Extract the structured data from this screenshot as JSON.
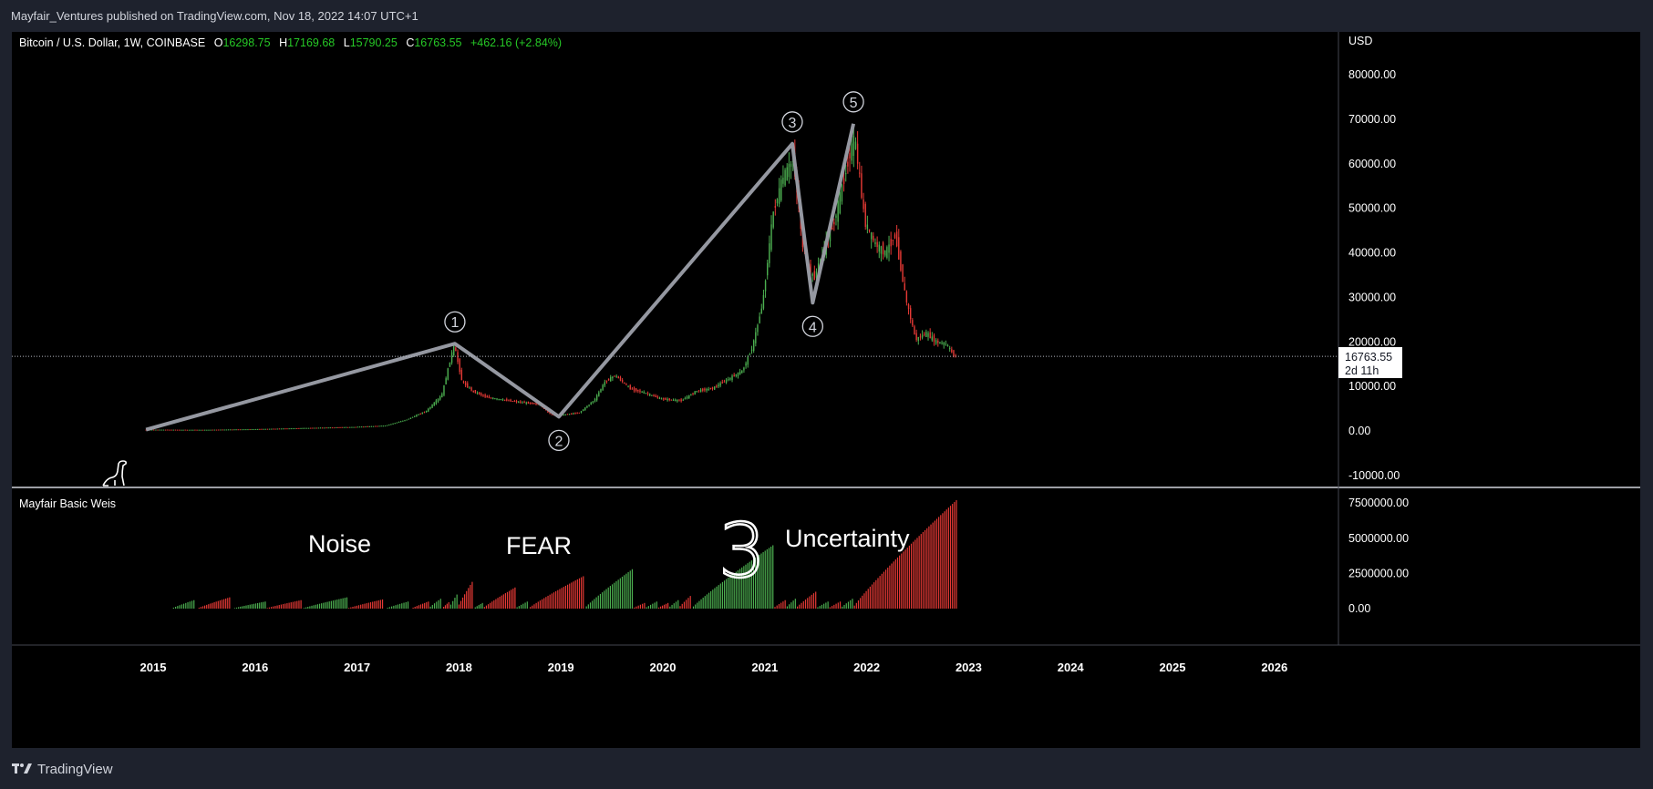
{
  "publish_line": "Mayfair_Ventures published on TradingView.com, Nov 18, 2022 14:07 UTC+1",
  "footer": {
    "brand": "TradingView",
    "logo_icon": "tradingview-logo-icon"
  },
  "symbol": {
    "name": "Bitcoin / U.S. Dollar, 1W, COINBASE",
    "o_label": "O",
    "o": "16298.75",
    "h_label": "H",
    "h": "17169.68",
    "l_label": "L",
    "l": "15790.25",
    "c_label": "C",
    "c": "16763.55",
    "change": "+462.16 (+2.84%)"
  },
  "price_axis": {
    "currency": "USD",
    "last_price": "16763.55",
    "countdown": "2d 11h"
  },
  "indicator": {
    "name": "Mayfair Basic Weis"
  },
  "annotations": {
    "noise": "Noise",
    "fear": "FEAR",
    "uncertainty": "Uncertainty",
    "handwritten": "3"
  },
  "colors": {
    "background": "#000000",
    "up": "#4caf50",
    "down": "#e53935",
    "wave_line": "#9598a1",
    "text": "#d1d4dc",
    "chart_bg_outer": "#1e222d",
    "positive_text": "#26c826"
  },
  "chart_data": [
    {
      "type": "line",
      "title": "Bitcoin / U.S. Dollar, 1W, COINBASE",
      "xlabel": "",
      "ylabel": "USD",
      "x_ticks": [
        "2015",
        "2016",
        "2017",
        "2018",
        "2019",
        "2020",
        "2021",
        "2022",
        "2023",
        "2024",
        "2025",
        "2026"
      ],
      "y_ticks": [
        "80000.00",
        "70000.00",
        "60000.00",
        "50000.00",
        "40000.00",
        "30000.00",
        "20000.00",
        "10000.00",
        "0.00",
        "-10000.00"
      ],
      "ylim": [
        -10000,
        85000
      ],
      "price_series": {
        "x": [
          2014.93,
          2015.5,
          2016.0,
          2016.5,
          2017.0,
          2017.3,
          2017.5,
          2017.7,
          2017.85,
          2017.97,
          2018.05,
          2018.15,
          2018.3,
          2018.45,
          2018.6,
          2018.8,
          2018.92,
          2019.0,
          2019.2,
          2019.35,
          2019.45,
          2019.55,
          2019.7,
          2019.85,
          2020.0,
          2020.2,
          2020.35,
          2020.5,
          2020.65,
          2020.8,
          2020.9,
          2021.0,
          2021.1,
          2021.2,
          2021.3,
          2021.4,
          2021.5,
          2021.6,
          2021.7,
          2021.85,
          2021.9,
          2022.0,
          2022.1,
          2022.2,
          2022.3,
          2022.4,
          2022.5,
          2022.6,
          2022.7,
          2022.8,
          2022.88
        ],
        "y": [
          300,
          250,
          400,
          650,
          900,
          1200,
          2500,
          4500,
          8000,
          19500,
          11000,
          9000,
          7500,
          7000,
          6500,
          6000,
          3700,
          3500,
          4100,
          7000,
          11000,
          12500,
          9500,
          8500,
          7200,
          6800,
          9000,
          9500,
          11500,
          13500,
          19000,
          29000,
          49000,
          57000,
          61000,
          40000,
          34000,
          41000,
          47000,
          62000,
          66000,
          47000,
          42000,
          40000,
          44000,
          30000,
          20500,
          22000,
          20000,
          19500,
          16763.55
        ]
      },
      "elliott_waves": [
        {
          "label": "",
          "x": 2014.93,
          "y": 300
        },
        {
          "label": "1",
          "x": 2017.96,
          "y": 19600
        },
        {
          "label": "2",
          "x": 2018.98,
          "y": 3200
        },
        {
          "label": "3",
          "x": 2021.27,
          "y": 64500
        },
        {
          "label": "4",
          "x": 2021.47,
          "y": 28800
        },
        {
          "label": "5",
          "x": 2021.87,
          "y": 69000
        }
      ],
      "last_price": 16763.55
    },
    {
      "type": "bar",
      "title": "Mayfair Basic Weis",
      "y_ticks": [
        "7500000.00",
        "5000000.00",
        "2500000.00",
        "0.00"
      ],
      "ylim": [
        0,
        8000000
      ],
      "waves": [
        {
          "start": 2015.2,
          "end": 2015.4,
          "peak": 600000,
          "direction": "up"
        },
        {
          "start": 2015.45,
          "end": 2015.75,
          "peak": 800000,
          "direction": "down"
        },
        {
          "start": 2015.8,
          "end": 2016.1,
          "peak": 500000,
          "direction": "up"
        },
        {
          "start": 2016.12,
          "end": 2016.45,
          "peak": 600000,
          "direction": "down"
        },
        {
          "start": 2016.48,
          "end": 2016.9,
          "peak": 800000,
          "direction": "up"
        },
        {
          "start": 2016.92,
          "end": 2017.25,
          "peak": 650000,
          "direction": "down"
        },
        {
          "start": 2017.3,
          "end": 2017.5,
          "peak": 500000,
          "direction": "up"
        },
        {
          "start": 2017.55,
          "end": 2017.7,
          "peak": 500000,
          "direction": "down"
        },
        {
          "start": 2017.72,
          "end": 2017.82,
          "peak": 700000,
          "direction": "up"
        },
        {
          "start": 2017.85,
          "end": 2017.9,
          "peak": 450000,
          "direction": "down"
        },
        {
          "start": 2017.92,
          "end": 2017.98,
          "peak": 1000000,
          "direction": "up"
        },
        {
          "start": 2018.0,
          "end": 2018.13,
          "peak": 1900000,
          "direction": "down"
        },
        {
          "start": 2018.16,
          "end": 2018.23,
          "peak": 400000,
          "direction": "up"
        },
        {
          "start": 2018.25,
          "end": 2018.55,
          "peak": 1500000,
          "direction": "down"
        },
        {
          "start": 2018.57,
          "end": 2018.67,
          "peak": 500000,
          "direction": "up"
        },
        {
          "start": 2018.7,
          "end": 2019.22,
          "peak": 2300000,
          "direction": "down"
        },
        {
          "start": 2019.25,
          "end": 2019.7,
          "peak": 2800000,
          "direction": "up"
        },
        {
          "start": 2019.72,
          "end": 2019.82,
          "peak": 400000,
          "direction": "down"
        },
        {
          "start": 2019.84,
          "end": 2019.94,
          "peak": 500000,
          "direction": "up"
        },
        {
          "start": 2019.96,
          "end": 2020.05,
          "peak": 400000,
          "direction": "down"
        },
        {
          "start": 2020.07,
          "end": 2020.15,
          "peak": 600000,
          "direction": "up"
        },
        {
          "start": 2020.17,
          "end": 2020.27,
          "peak": 900000,
          "direction": "down"
        },
        {
          "start": 2020.3,
          "end": 2021.08,
          "peak": 4500000,
          "direction": "up"
        },
        {
          "start": 2021.1,
          "end": 2021.2,
          "peak": 600000,
          "direction": "down"
        },
        {
          "start": 2021.22,
          "end": 2021.3,
          "peak": 700000,
          "direction": "up"
        },
        {
          "start": 2021.32,
          "end": 2021.5,
          "peak": 1200000,
          "direction": "down"
        },
        {
          "start": 2021.52,
          "end": 2021.62,
          "peak": 500000,
          "direction": "up"
        },
        {
          "start": 2021.64,
          "end": 2021.74,
          "peak": 500000,
          "direction": "down"
        },
        {
          "start": 2021.76,
          "end": 2021.86,
          "peak": 700000,
          "direction": "up"
        },
        {
          "start": 2021.88,
          "end": 2022.88,
          "peak": 7700000,
          "direction": "down"
        }
      ]
    }
  ]
}
